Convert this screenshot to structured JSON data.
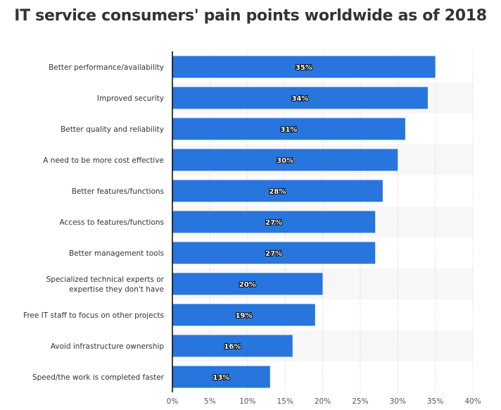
{
  "chart_data": {
    "type": "bar",
    "orientation": "horizontal",
    "title": "IT service consumers' pain points worldwide as of 2018",
    "categories": [
      "Better performance/availability",
      "Improved security",
      "Better quality and reliability",
      "A need to be more cost effective",
      "Better features/functions",
      "Access to features/functions",
      "Better management tools",
      "Specialized technical experts or\nexpertise they don't have",
      "Free IT staff to focus on other projects",
      "Avoid infrastructure ownership",
      "Speed/the work is completed faster"
    ],
    "values": [
      35,
      34,
      31,
      30,
      28,
      27,
      27,
      20,
      19,
      16,
      13
    ],
    "data_labels": [
      "35%",
      "34%",
      "31%",
      "30%",
      "28%",
      "27%",
      "27%",
      "20%",
      "19%",
      "16%",
      "13%"
    ],
    "xlim": [
      0,
      40
    ],
    "x_ticks": [
      "0%",
      "5%",
      "10%",
      "15%",
      "20%",
      "25%",
      "30%",
      "35%",
      "40%"
    ],
    "grid": true,
    "bar_color": "#2876dd",
    "stripe_color": "#f7f7f7"
  }
}
